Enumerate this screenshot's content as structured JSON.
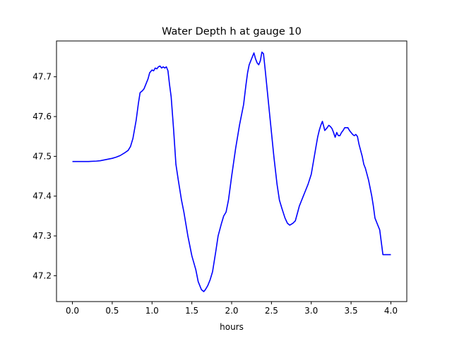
{
  "chart_data": {
    "type": "line",
    "title": "Water Depth h at gauge 10",
    "xlabel": "hours",
    "ylabel": "",
    "xlim": [
      -0.2,
      4.2
    ],
    "ylim": [
      47.135,
      47.79
    ],
    "x_ticks": [
      0.0,
      0.5,
      1.0,
      1.5,
      2.0,
      2.5,
      3.0,
      3.5,
      4.0
    ],
    "x_tick_labels": [
      "0.0",
      "0.5",
      "1.0",
      "1.5",
      "2.0",
      "2.5",
      "3.0",
      "3.5",
      "4.0"
    ],
    "y_ticks": [
      47.2,
      47.3,
      47.4,
      47.5,
      47.6,
      47.7
    ],
    "y_tick_labels": [
      "47.2",
      "47.3",
      "47.4",
      "47.5",
      "47.6",
      "47.7"
    ],
    "grid": false,
    "series": [
      {
        "color": "#0000ff",
        "x": [
          0.0,
          0.1,
          0.2,
          0.3,
          0.35,
          0.4,
          0.45,
          0.5,
          0.55,
          0.6,
          0.65,
          0.7,
          0.73,
          0.76,
          0.8,
          0.83,
          0.85,
          0.88,
          0.9,
          0.93,
          0.95,
          0.97,
          1.0,
          1.02,
          1.04,
          1.06,
          1.08,
          1.1,
          1.12,
          1.14,
          1.16,
          1.18,
          1.2,
          1.22,
          1.24,
          1.27,
          1.3,
          1.33,
          1.37,
          1.4,
          1.45,
          1.5,
          1.55,
          1.58,
          1.62,
          1.65,
          1.67,
          1.7,
          1.73,
          1.76,
          1.8,
          1.83,
          1.87,
          1.9,
          1.93,
          1.96,
          2.0,
          2.05,
          2.1,
          2.15,
          2.18,
          2.2,
          2.22,
          2.25,
          2.28,
          2.3,
          2.32,
          2.34,
          2.36,
          2.38,
          2.4,
          2.42,
          2.44,
          2.46,
          2.48,
          2.5,
          2.53,
          2.57,
          2.6,
          2.63,
          2.67,
          2.7,
          2.73,
          2.77,
          2.8,
          2.83,
          2.85,
          2.88,
          2.9,
          2.93,
          2.96,
          3.0,
          3.03,
          3.06,
          3.08,
          3.1,
          3.12,
          3.14,
          3.17,
          3.2,
          3.22,
          3.24,
          3.26,
          3.28,
          3.3,
          3.32,
          3.34,
          3.36,
          3.38,
          3.4,
          3.42,
          3.44,
          3.46,
          3.48,
          3.5,
          3.52,
          3.54,
          3.56,
          3.58,
          3.6,
          3.62,
          3.64,
          3.66,
          3.68,
          3.7,
          3.72,
          3.74,
          3.76,
          3.78,
          3.8,
          3.83,
          3.86,
          3.9,
          3.93,
          3.95,
          3.97,
          4.0
        ],
        "y": [
          47.487,
          47.487,
          47.487,
          47.488,
          47.489,
          47.491,
          47.493,
          47.495,
          47.498,
          47.502,
          47.508,
          47.515,
          47.525,
          47.545,
          47.59,
          47.635,
          47.66,
          47.665,
          47.67,
          47.685,
          47.695,
          47.71,
          47.717,
          47.715,
          47.722,
          47.72,
          47.725,
          47.727,
          47.722,
          47.725,
          47.722,
          47.725,
          47.715,
          47.68,
          47.65,
          47.57,
          47.48,
          47.44,
          47.39,
          47.36,
          47.3,
          47.25,
          47.215,
          47.185,
          47.165,
          47.16,
          47.165,
          47.175,
          47.19,
          47.21,
          47.26,
          47.3,
          47.33,
          47.35,
          47.36,
          47.39,
          47.45,
          47.52,
          47.58,
          47.63,
          47.68,
          47.71,
          47.73,
          47.745,
          47.76,
          47.745,
          47.735,
          47.73,
          47.74,
          47.762,
          47.758,
          47.72,
          47.68,
          47.64,
          47.6,
          47.56,
          47.5,
          47.43,
          47.39,
          47.37,
          47.345,
          47.332,
          47.327,
          47.332,
          47.338,
          47.36,
          47.375,
          47.39,
          47.4,
          47.415,
          47.43,
          47.455,
          47.49,
          47.525,
          47.548,
          47.565,
          47.578,
          47.588,
          47.565,
          47.572,
          47.578,
          47.575,
          47.57,
          47.56,
          47.548,
          47.56,
          47.552,
          47.552,
          47.56,
          47.565,
          47.572,
          47.572,
          47.572,
          47.565,
          47.56,
          47.555,
          47.552,
          47.555,
          47.55,
          47.53,
          47.515,
          47.5,
          47.48,
          47.47,
          47.455,
          47.44,
          47.42,
          47.4,
          47.375,
          47.345,
          47.33,
          47.315,
          47.253,
          47.253,
          47.253,
          47.253,
          47.253
        ]
      }
    ]
  }
}
